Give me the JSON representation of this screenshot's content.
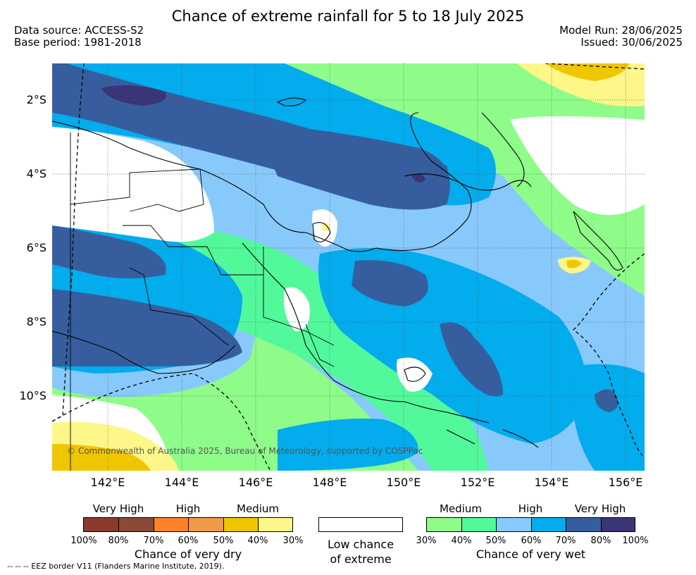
{
  "title": "Chance of extreme rainfall for 5 to 18 July 2025",
  "data_source": "Data source: ACCESS-S2",
  "base_period": "Base period: 1981-2018",
  "model_run": "Model Run: 28/06/2025",
  "issued": "Issued: 30/06/2025",
  "map": {
    "lat_labels": [
      "2°S",
      "4°S",
      "6°S",
      "8°S",
      "10°S"
    ],
    "lon_labels": [
      "142°E",
      "144°E",
      "146°E",
      "148°E",
      "150°E",
      "152°E",
      "154°E",
      "156°E"
    ],
    "copyright": "© Commonwealth of Australia 2025, Bureau of Meteorology, supported by COSPPac"
  },
  "legend": {
    "dry": {
      "categories": [
        "Very High",
        "High",
        "Medium"
      ],
      "percent_labels": [
        "100%",
        "80%",
        "70%",
        "60%",
        "50%",
        "40%",
        "30%"
      ],
      "colors": [
        "#8b3a2e",
        "#8b4a38",
        "#fd8129",
        "#ee9b48",
        "#efc700",
        "#fdf689"
      ],
      "caption": "Chance of very dry"
    },
    "low": {
      "caption_line1": "Low chance",
      "caption_line2": "of extreme",
      "color": "#ffffff"
    },
    "wet": {
      "categories": [
        "Medium",
        "High",
        "Very High"
      ],
      "percent_labels": [
        "30%",
        "40%",
        "50%",
        "60%",
        "70%",
        "80%",
        "100%"
      ],
      "colors": [
        "#8ffc8a",
        "#52f99a",
        "#88c9fc",
        "#03acec",
        "#365e9e",
        "#3a3577"
      ],
      "caption": "Chance of very wet"
    }
  },
  "eez_note": "--  --  -- EEZ border V11 (Flanders Marine Institute, 2019)."
}
